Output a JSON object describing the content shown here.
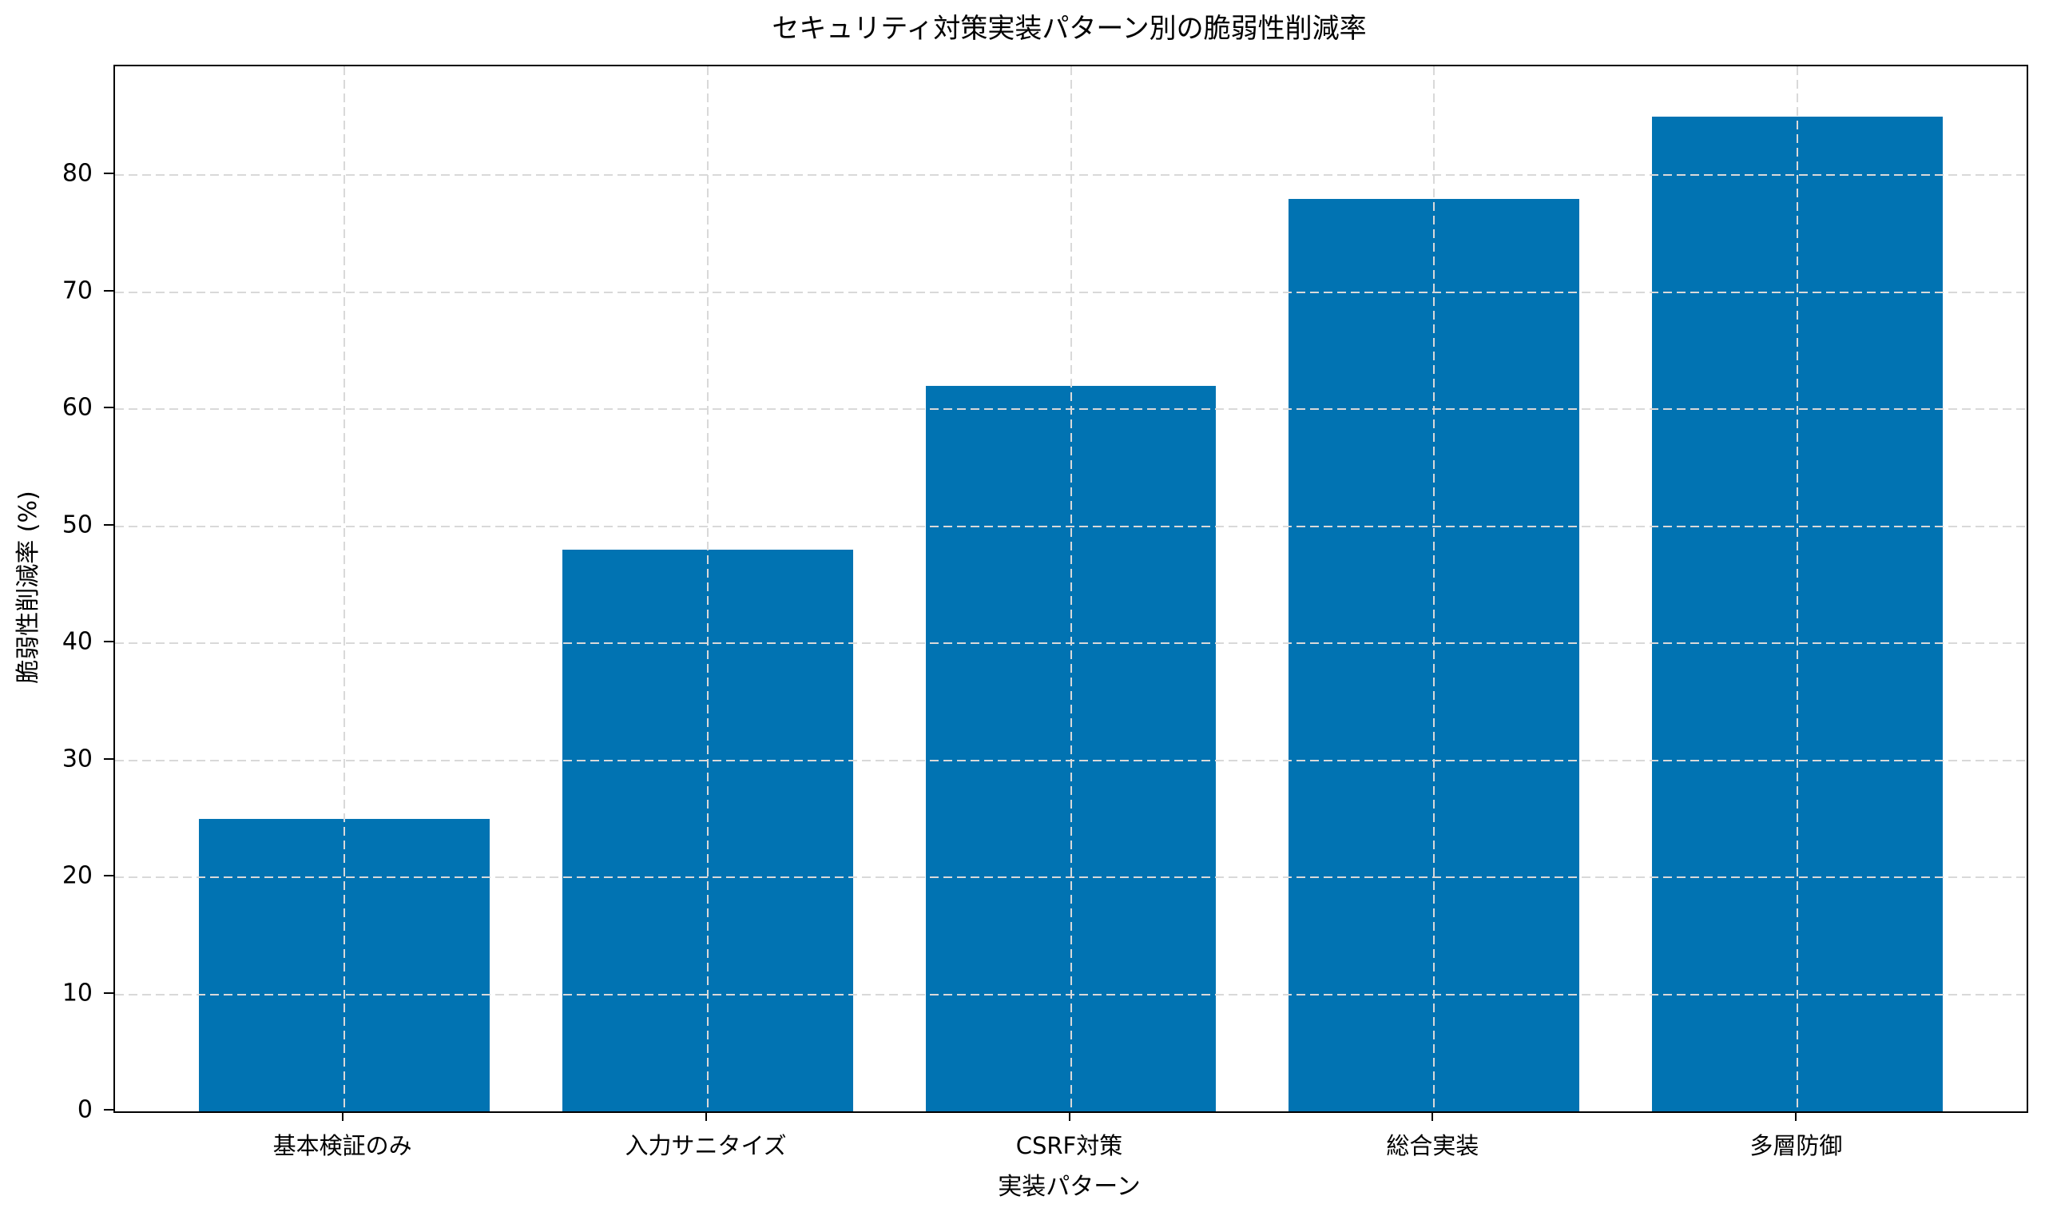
{
  "chart_data": {
    "type": "bar",
    "title": "セキュリティ対策実装パターン別の脆弱性削減率",
    "xlabel": "実装パターン",
    "ylabel": "脆弱性削減率 (%)",
    "categories": [
      "基本検証のみ",
      "入力サニタイズ",
      "CSRF対策",
      "総合実装",
      "多層防御"
    ],
    "values": [
      25,
      48,
      62,
      78,
      85
    ],
    "yticks": [
      0,
      10,
      20,
      30,
      40,
      50,
      60,
      70,
      80
    ],
    "ylim": [
      0,
      89.3
    ],
    "xlim": [
      -0.63,
      4.63
    ],
    "bar_width": 0.8,
    "bar_color": "#0173b2",
    "grid": true,
    "grid_color": "#d9d9d9",
    "grid_style": "dashed",
    "legend": "none",
    "background_color": "#ffffff",
    "spine_color": "#000000"
  }
}
